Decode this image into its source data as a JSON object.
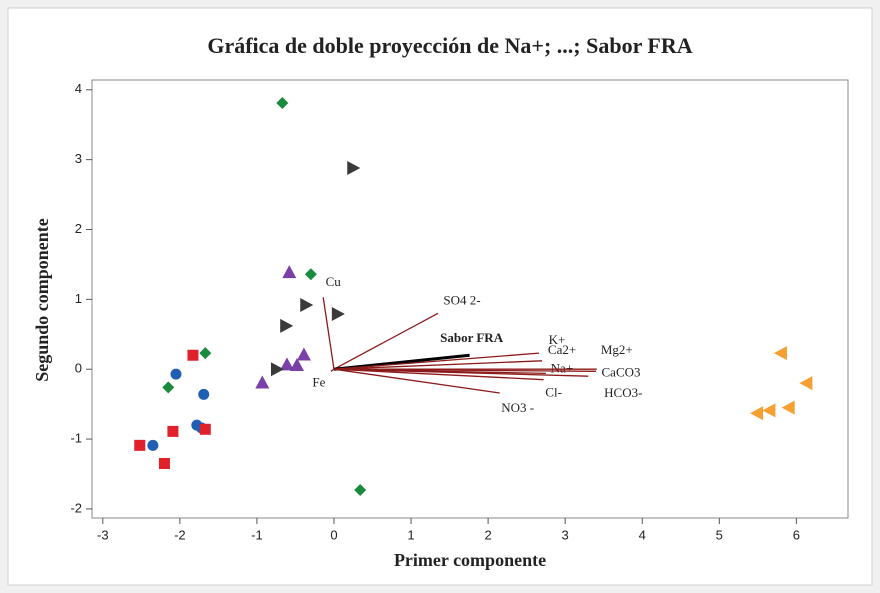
{
  "chart_data": {
    "type": "biplot",
    "title": "Gráfica de doble proyección de Na+; ...; Sabor FRA",
    "xlabel": "Primer componente",
    "ylabel": "Segundo componente",
    "xlim": [
      -3.14,
      6.67
    ],
    "ylim": [
      -2.13,
      4.14
    ],
    "xticks": [
      -3,
      -2,
      -1,
      0,
      1,
      2,
      3,
      4,
      5,
      6
    ],
    "yticks": [
      -2,
      -1,
      0,
      1,
      2,
      3,
      4
    ],
    "series": [
      {
        "marker": "circle",
        "color": "#1f5fb4",
        "x": [
          -2.05,
          -1.69,
          -1.78,
          -1.72,
          -2.35
        ],
        "y": [
          -0.07,
          -0.36,
          -0.8,
          -0.84,
          -1.09
        ]
      },
      {
        "marker": "square",
        "color": "#e0202a",
        "x": [
          -1.83,
          -2.09,
          -1.67,
          -2.52,
          -2.2
        ],
        "y": [
          0.2,
          -0.89,
          -0.86,
          -1.09,
          -1.35
        ]
      },
      {
        "marker": "diamond",
        "color": "#1a8a3c",
        "x": [
          -0.67,
          -0.3,
          -1.67,
          -2.15,
          0.34
        ],
        "y": [
          3.81,
          1.36,
          0.23,
          -0.26,
          -1.73
        ]
      },
      {
        "marker": "triangle-up",
        "color": "#7b3fa8",
        "x": [
          -0.58,
          -0.39,
          -0.61,
          -0.48,
          -0.93
        ],
        "y": [
          1.39,
          0.21,
          0.07,
          0.06,
          -0.19
        ]
      },
      {
        "marker": "triangle-right",
        "color": "#3a3a3a",
        "x": [
          0.25,
          -0.36,
          0.05,
          -0.62,
          -0.74
        ],
        "y": [
          2.88,
          0.92,
          0.79,
          0.62,
          0.0
        ]
      },
      {
        "marker": "triangle-left",
        "color": "#f5a030",
        "x": [
          5.8,
          6.13,
          5.49,
          5.65,
          5.9
        ],
        "y": [
          0.23,
          -0.2,
          -0.63,
          -0.59,
          -0.55
        ]
      }
    ],
    "vector_color": "#8b1a1a",
    "vectors": [
      {
        "label": "Cu",
        "x": -0.14,
        "y": 1.03
      },
      {
        "label": "SO4 2-",
        "x": 1.35,
        "y": 0.8
      },
      {
        "label": "Sabor FRA",
        "x": 1.76,
        "y": 0.2,
        "highlight": true
      },
      {
        "label": "K+",
        "x": 2.66,
        "y": 0.23
      },
      {
        "label": "Ca2+",
        "x": 2.7,
        "y": 0.12
      },
      {
        "label": "Na+",
        "x": 2.75,
        "y": -0.06
      },
      {
        "label": "Mg2+",
        "x": 3.41,
        "y": 0.0
      },
      {
        "label": "CaCO3",
        "x": 3.4,
        "y": -0.03
      },
      {
        "label": "HCO3-",
        "x": 3.3,
        "y": -0.1
      },
      {
        "label": "Cl-",
        "x": 2.72,
        "y": -0.15
      },
      {
        "label": "NO3 -",
        "x": 2.15,
        "y": -0.34
      },
      {
        "label": "Fe",
        "x": -0.04,
        "y": -0.03
      }
    ]
  }
}
